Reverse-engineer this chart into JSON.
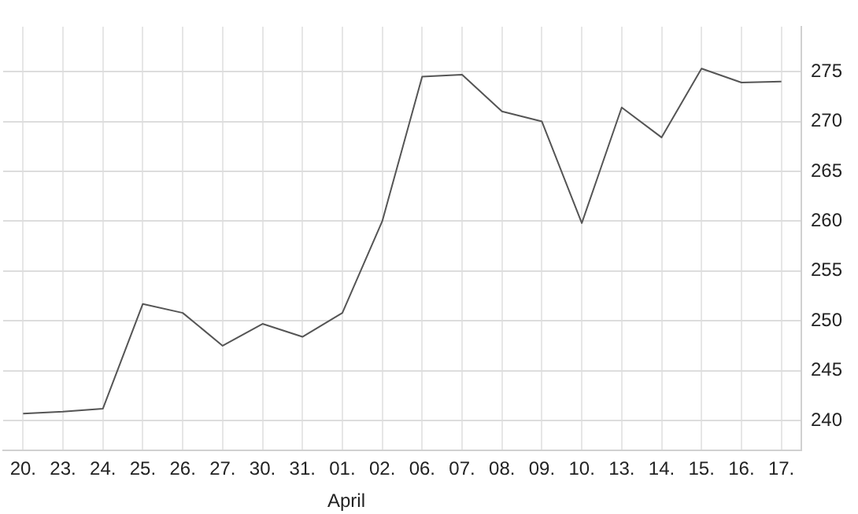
{
  "chart_data": {
    "type": "line",
    "categories": [
      "20.",
      "23.",
      "24.",
      "25.",
      "26.",
      "27.",
      "30.",
      "31.",
      "01.",
      "02.",
      "06.",
      "07.",
      "08.",
      "09.",
      "10.",
      "13.",
      "14.",
      "15.",
      "16.",
      "17."
    ],
    "series": [
      {
        "color": "#555555",
        "values": [
          240.7,
          240.9,
          241.2,
          251.7,
          250.8,
          247.5,
          249.7,
          248.4,
          250.8,
          260,
          274.5,
          274.7,
          271,
          270,
          259.8,
          271.4,
          268.4,
          275.3,
          273.9,
          274.0
        ]
      }
    ],
    "ylim": [
      237,
      279.5
    ],
    "yticks": [
      240,
      245,
      250,
      255,
      260,
      265,
      270,
      275
    ],
    "grid": true,
    "legend": false,
    "marker": "none",
    "line_style": "solid",
    "annotations": [
      "April"
    ]
  }
}
